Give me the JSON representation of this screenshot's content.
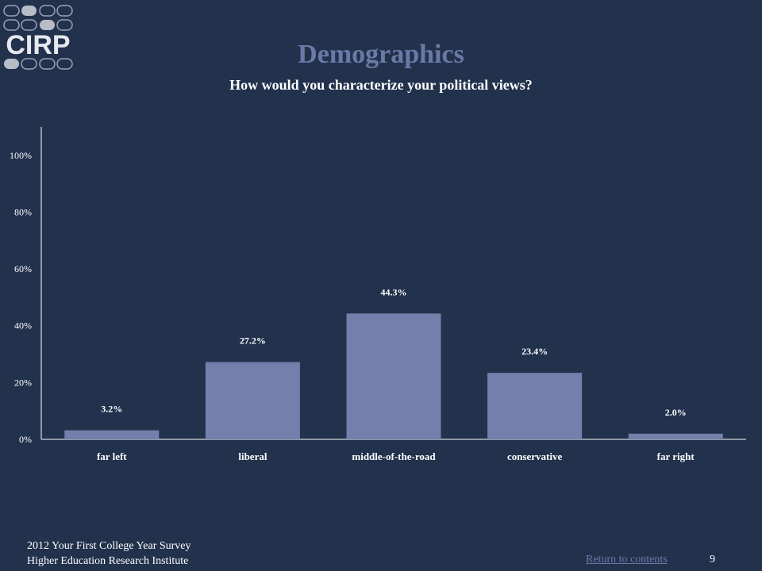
{
  "logo": {
    "text": "CIRP"
  },
  "title": "Demographics",
  "subtitle": "How would you characterize your political views?",
  "chart_data": {
    "type": "bar",
    "title": "",
    "xlabel": "",
    "ylabel": "",
    "categories": [
      "far left",
      "liberal",
      "middle-of-the-road",
      "conservative",
      "far right"
    ],
    "values": [
      3.2,
      27.2,
      44.3,
      23.4,
      2.0
    ],
    "data_labels": [
      "3.2%",
      "27.2%",
      "44.3%",
      "23.4%",
      "2.0%"
    ],
    "yticks": [
      0,
      20,
      40,
      60,
      80,
      100
    ],
    "ytick_labels": [
      "0%",
      "20%",
      "40%",
      "60%",
      "80%",
      "100%"
    ],
    "ylim": [
      0,
      110
    ],
    "grid": false,
    "bar_color": "#7480ab"
  },
  "footer": {
    "line1": "2012 Your First College Year Survey",
    "line2": "Higher Education Research Institute",
    "return_link": "Return to contents",
    "page_number": "9"
  },
  "colors": {
    "background": "#22324d",
    "title": "#6b79a6",
    "link": "#6b79a6"
  }
}
